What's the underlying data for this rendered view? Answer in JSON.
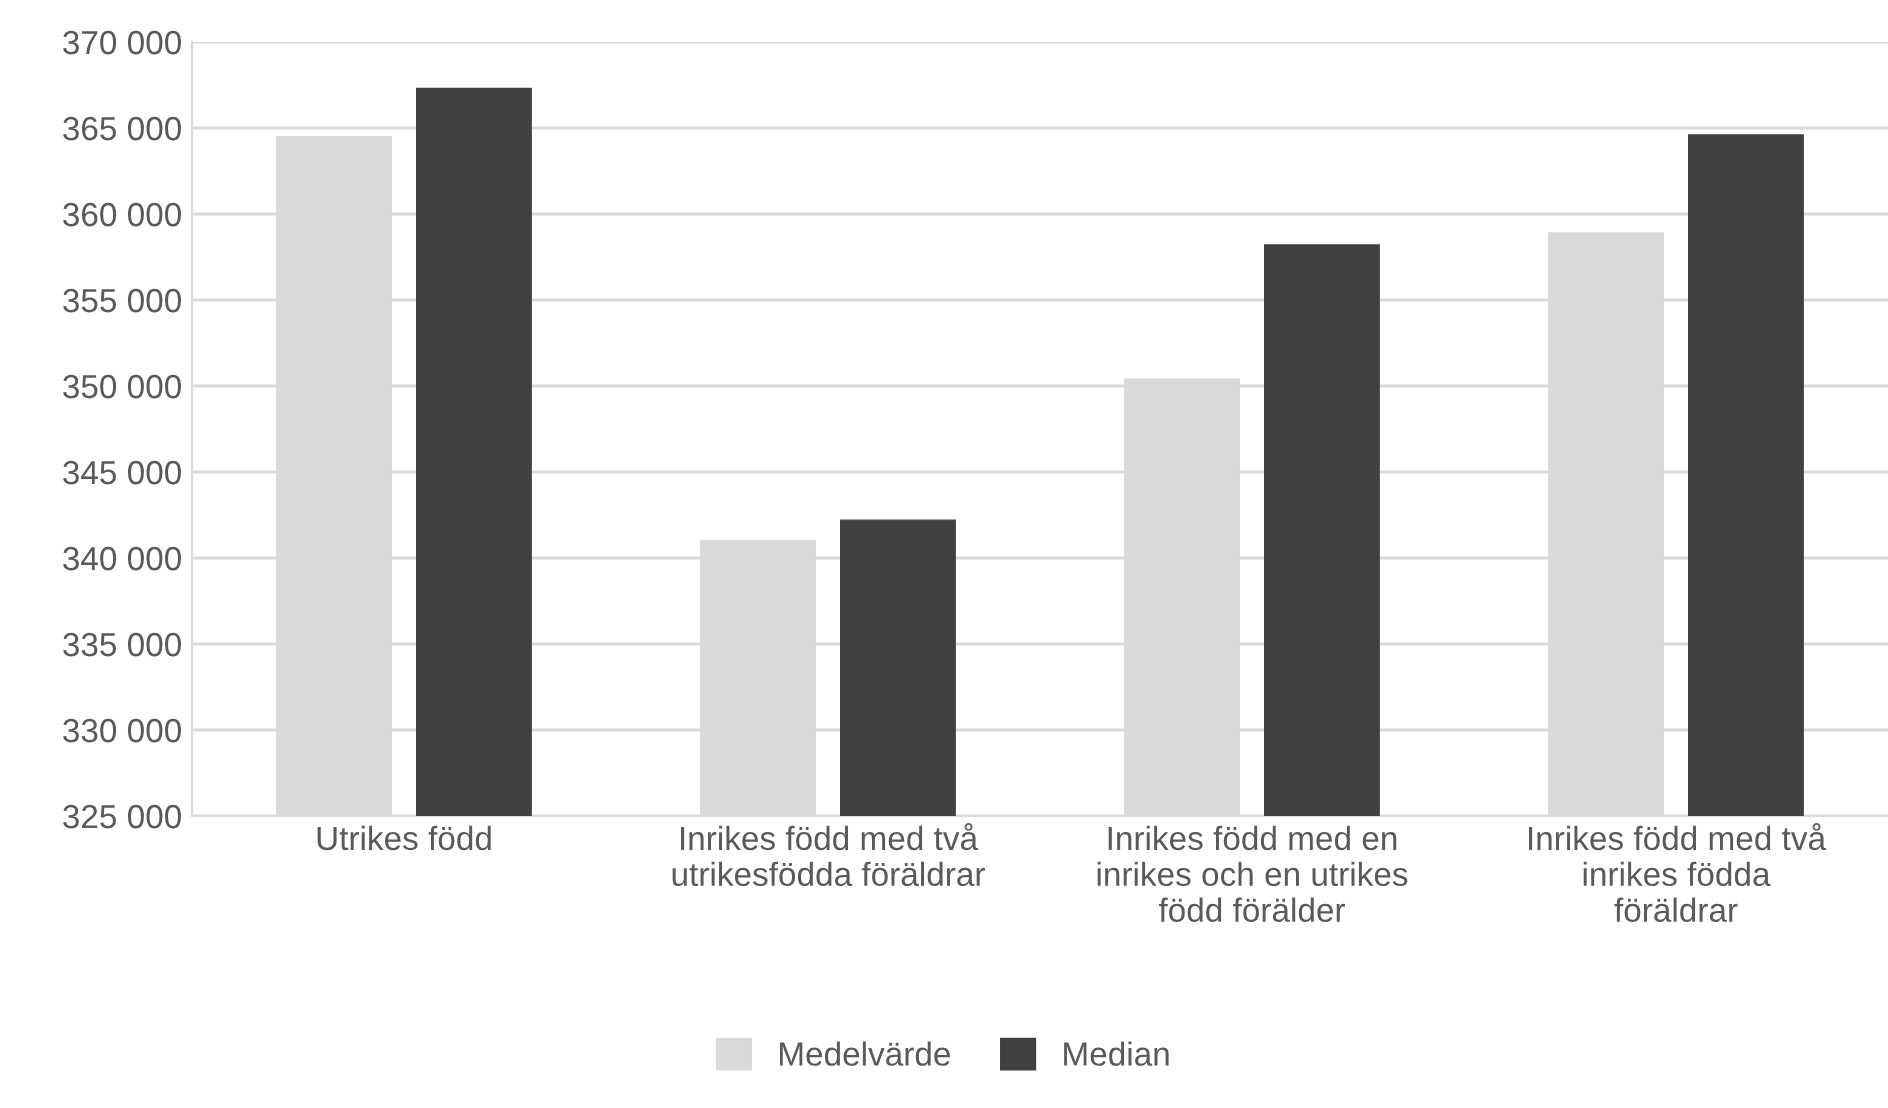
{
  "chart_data": {
    "type": "bar",
    "categories": [
      "Utrikes född",
      "Inrikes född med två\nutrikesfödda föräldrar",
      "Inrikes född med en\ninrikes och en utrikes\nfödd förälder",
      "Inrikes född med två\ninrikes födda\nföräldrar"
    ],
    "series": [
      {
        "name": "Medelvärde",
        "color": "#d9d9d9",
        "values": [
          364500,
          341000,
          350400,
          358900
        ]
      },
      {
        "name": "Median",
        "color": "#404040",
        "values": [
          367300,
          342200,
          358200,
          364600
        ]
      }
    ],
    "ylim": [
      325000,
      370000
    ],
    "yticks": [
      {
        "value": 325000,
        "label": "325 000"
      },
      {
        "value": 330000,
        "label": "330 000"
      },
      {
        "value": 335000,
        "label": "335 000"
      },
      {
        "value": 340000,
        "label": "340 000"
      },
      {
        "value": 345000,
        "label": "345 000"
      },
      {
        "value": 350000,
        "label": "350 000"
      },
      {
        "value": 355000,
        "label": "355 000"
      },
      {
        "value": 360000,
        "label": "360 000"
      },
      {
        "value": 365000,
        "label": "365 000"
      },
      {
        "value": 370000,
        "label": "370 000"
      }
    ],
    "grid": "y",
    "legend": "bottom"
  }
}
